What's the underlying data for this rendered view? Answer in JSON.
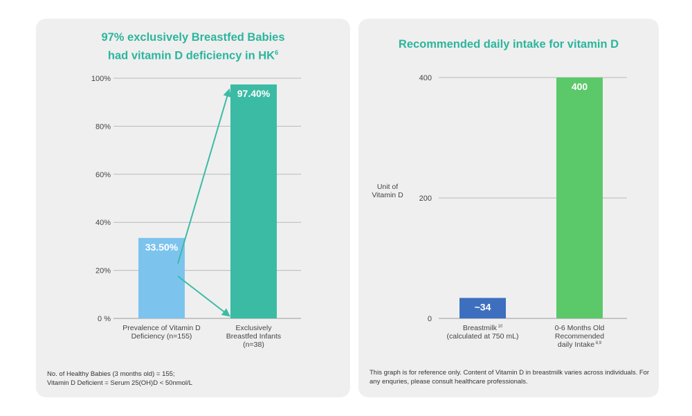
{
  "left": {
    "title_line1": "97% exclusively Breastfed Babies",
    "title_line2": "had vitamin D deficiency in HK",
    "title_sup": "6",
    "footnote_line1": "No. of Healthy Babies (3 months old) = 155;",
    "footnote_line2": "Vitamin D Deficient = Serum 25(OH)D < 50nmol/L"
  },
  "right": {
    "title": "Recommended daily intake for vitamin D",
    "footnote_line1": "This graph is for reference only. Content of Vitamin D in breastmilk varies across individuals. For",
    "footnote_line2": "any enquries, please consult healthcare professionals."
  },
  "chart_data": [
    {
      "type": "bar",
      "title": "97% exclusively Breastfed Babies had vitamin D deficiency in HK6",
      "categories": [
        [
          "Prevalence of Vitamin D",
          "Deficiency (n=155)"
        ],
        [
          "Exclusively",
          "Breastfed Infants",
          "(n=38)"
        ]
      ],
      "values": [
        33.5,
        97.4
      ],
      "value_labels": [
        "33.50%",
        "97.40%"
      ],
      "colors": [
        "#7cc3ee",
        "#3bbba4"
      ],
      "yticks": [
        "0  %",
        "20%",
        "40%",
        "60%",
        "80%",
        "100%"
      ],
      "ylim": [
        0,
        100
      ],
      "grid": true,
      "arrow_color": "#3bbba4"
    },
    {
      "type": "bar",
      "title": "Recommended daily intake for vitamin D",
      "ylabel": [
        "Unit of",
        "Vitamin D"
      ],
      "categories": [
        [
          "Breastmilk",
          "(calculated  at 750 mL)"
        ],
        [
          "0-6 Months Old",
          "Recommended",
          "daily  Intake"
        ]
      ],
      "category_sups": [
        "10",
        "8,9"
      ],
      "values": [
        34,
        400
      ],
      "value_labels": [
        "~34",
        "400"
      ],
      "colors": [
        "#3e6fbf",
        "#5bc86a"
      ],
      "yticks": [
        "0",
        "200",
        "400"
      ],
      "ylim": [
        0,
        400
      ],
      "grid": true
    }
  ]
}
